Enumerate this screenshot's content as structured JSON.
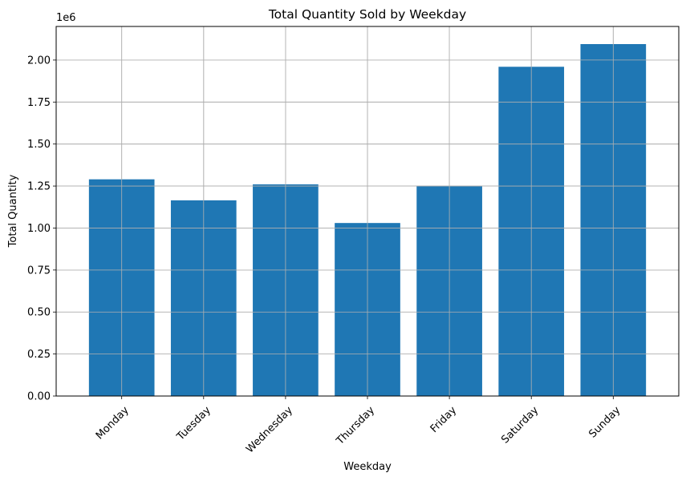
{
  "chart_data": {
    "type": "bar",
    "title": "Total Quantity Sold by Weekday",
    "xlabel": "Weekday",
    "ylabel": "Total Quantity",
    "y_offset_label": "1e6",
    "categories": [
      "Monday",
      "Tuesday",
      "Wednesday",
      "Thursday",
      "Friday",
      "Saturday",
      "Sunday"
    ],
    "values": [
      1290000,
      1165000,
      1260000,
      1030000,
      1250000,
      1960000,
      2095000
    ],
    "ylim": [
      0,
      2200000
    ],
    "yticks": [
      0,
      250000,
      500000,
      750000,
      1000000,
      1250000,
      1500000,
      1750000,
      2000000
    ],
    "ytick_labels": [
      "0.00",
      "0.25",
      "0.50",
      "0.75",
      "1.00",
      "1.25",
      "1.50",
      "1.75",
      "2.00"
    ],
    "grid": true,
    "colors": {
      "bar": "#1f77b4",
      "grid": "#b0b0b0",
      "axis": "#000000"
    }
  }
}
